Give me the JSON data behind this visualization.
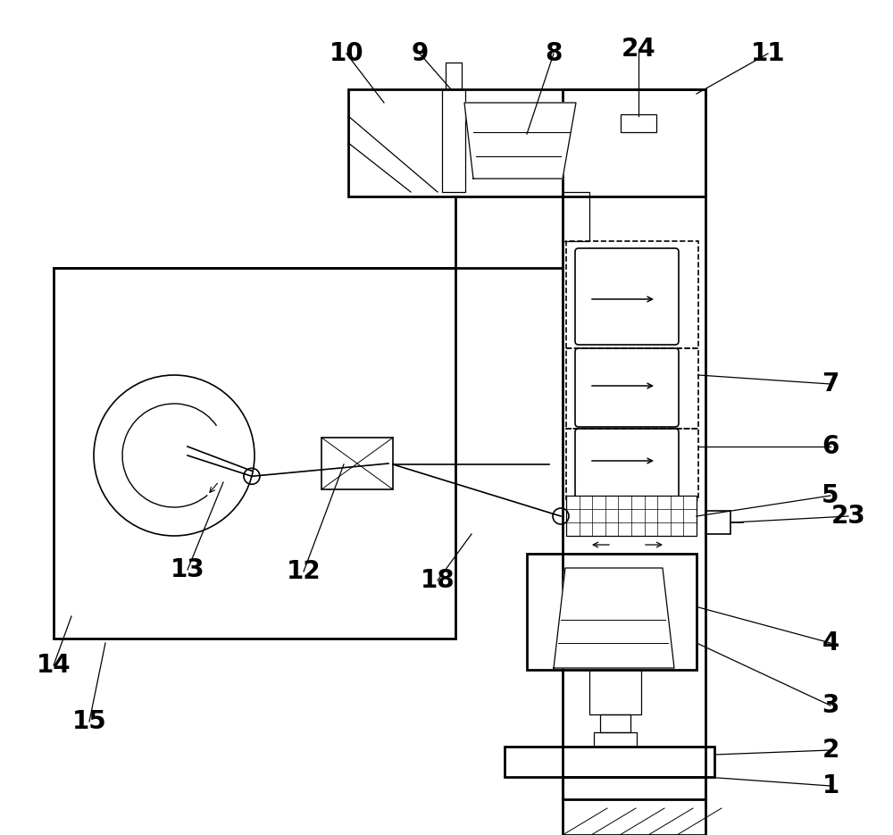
{
  "bg": "#ffffff",
  "fig_w": 10.0,
  "fig_h": 9.35
}
